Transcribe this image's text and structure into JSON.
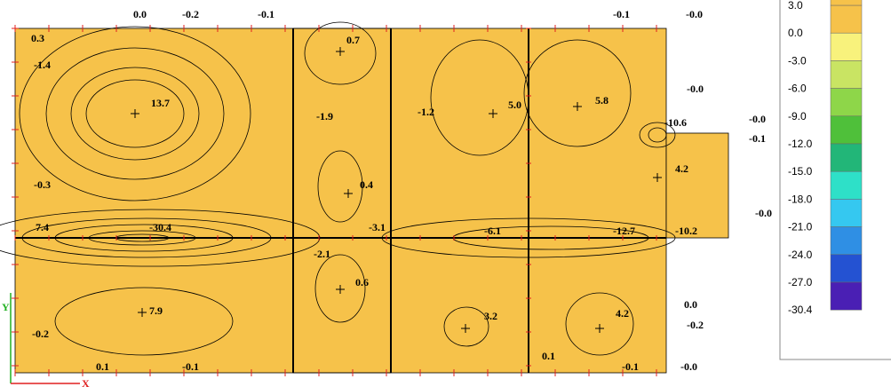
{
  "legend": {
    "levels": [
      "3.0",
      "0.0",
      "-3.0",
      "-6.0",
      "-9.0",
      "-12.0",
      "-15.0",
      "-18.0",
      "-21.0",
      "-24.0",
      "-27.0",
      "-30.4"
    ],
    "colors": [
      "#f6c24a",
      "#f8f27c",
      "#c9e463",
      "#8ed649",
      "#4fc03a",
      "#22b678",
      "#2ee0c8",
      "#35c8f0",
      "#2f8fe4",
      "#2452d2",
      "#4a1fb4"
    ]
  },
  "contour_labels": [
    "0.3",
    "-1.4",
    "13.7",
    "-0.3",
    "7.4",
    "-30.4",
    "7.9",
    "-0.2",
    "0.7",
    "-1.9",
    "0.4",
    "-3.1",
    "-2.1",
    "0.6",
    "-1.2",
    "5.0",
    "5.8",
    "-10.6",
    "4.2",
    "-0.0",
    "-0.0",
    "-0.1",
    "-0.0",
    "-6.1",
    "-12.7",
    "-10.2",
    "3.2",
    "4.2",
    "0.0",
    "-0.2",
    "0.1",
    "-0.1",
    "-0.0",
    "0.1",
    "-0.1",
    "-0.1",
    "-0.1",
    "-0.0",
    "0.0",
    "-0.2"
  ],
  "axis": {
    "x": "X",
    "y": "Y"
  }
}
